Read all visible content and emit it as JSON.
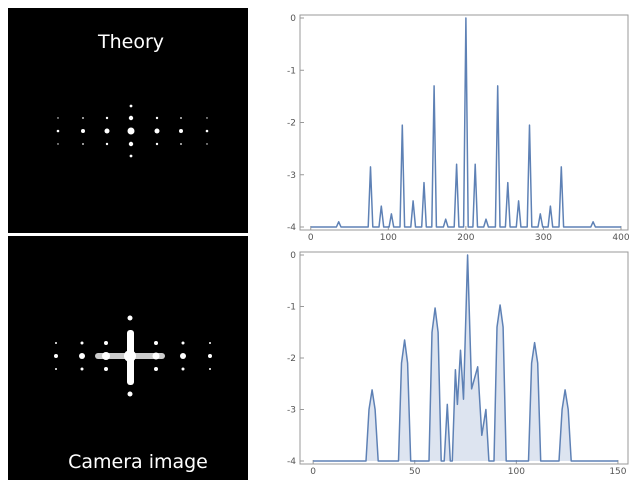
{
  "panels": [
    {
      "label": "Theory"
    },
    {
      "label": "Camera image"
    }
  ],
  "chart_data": [
    {
      "type": "line",
      "color": "#5e81b5",
      "x": [
        0,
        33,
        36,
        39,
        74,
        77,
        80,
        88,
        91,
        94,
        101,
        104,
        107,
        115,
        118,
        121,
        129,
        132,
        135,
        143,
        146,
        149,
        156,
        159,
        162,
        171,
        174,
        177,
        185,
        188,
        191,
        197,
        200,
        203,
        209,
        212,
        215,
        223,
        226,
        229,
        238,
        241,
        244,
        251,
        254,
        257,
        265,
        268,
        271,
        279,
        282,
        285,
        293,
        296,
        299,
        306,
        309,
        312,
        320,
        323,
        326,
        361,
        364,
        367,
        400
      ],
      "values": [
        -4,
        -4,
        -3.9,
        -4,
        -4,
        -2.85,
        -4,
        -4,
        -3.6,
        -4,
        -4,
        -3.75,
        -4,
        -4,
        -2.05,
        -4,
        -4,
        -3.5,
        -4,
        -4,
        -3.15,
        -4,
        -4,
        -1.3,
        -4,
        -4,
        -3.85,
        -4,
        -4,
        -2.8,
        -4,
        -4,
        0,
        -4,
        -4,
        -2.8,
        -4,
        -4,
        -3.85,
        -4,
        -4,
        -1.3,
        -4,
        -4,
        -3.15,
        -4,
        -4,
        -3.5,
        -4,
        -4,
        -2.05,
        -4,
        -4,
        -3.75,
        -4,
        -4,
        -3.6,
        -4,
        -4,
        -2.85,
        -4,
        -4,
        -3.9,
        -4,
        -4
      ],
      "xlim": [
        -10,
        400
      ],
      "ylim": [
        -4,
        0
      ],
      "xticks": [
        0,
        100,
        200,
        300,
        400
      ],
      "yticks": [
        0,
        -1,
        -2,
        -3,
        -4
      ]
    },
    {
      "type": "area",
      "color": "#5e81b5",
      "fill_color": "#dde4f0",
      "x": [
        0,
        26,
        27.5,
        29,
        30.5,
        32,
        42,
        43.5,
        45,
        46.5,
        48,
        57,
        58.5,
        60,
        61.5,
        63,
        64.5,
        66,
        67.5,
        68.5,
        70,
        71,
        72.5,
        74,
        76,
        78,
        81,
        83,
        85,
        86.5,
        89,
        90.5,
        92,
        93.5,
        95,
        106,
        107.5,
        109,
        110.5,
        112,
        121,
        122.5,
        124,
        125.5,
        127,
        150
      ],
      "values": [
        -4,
        -4,
        -3,
        -2.62,
        -3,
        -4,
        -4,
        -2.1,
        -1.65,
        -2.1,
        -4,
        -4,
        -1.5,
        -1.03,
        -1.5,
        -4,
        -4,
        -2.9,
        -4,
        -4,
        -2.23,
        -2.9,
        -1.85,
        -2.8,
        0,
        -2.6,
        -2.17,
        -3.5,
        -3,
        -4,
        -4,
        -1.4,
        -0.97,
        -1.4,
        -4,
        -4,
        -2.1,
        -1.7,
        -2.1,
        -4,
        -4,
        -3,
        -2.62,
        -3,
        -4,
        -4
      ],
      "xlim": [
        -5,
        152
      ],
      "ylim": [
        -4,
        0
      ],
      "xticks": [
        0,
        50,
        100,
        150
      ],
      "yticks": [
        0,
        -1,
        -2,
        -3,
        -4
      ]
    }
  ]
}
